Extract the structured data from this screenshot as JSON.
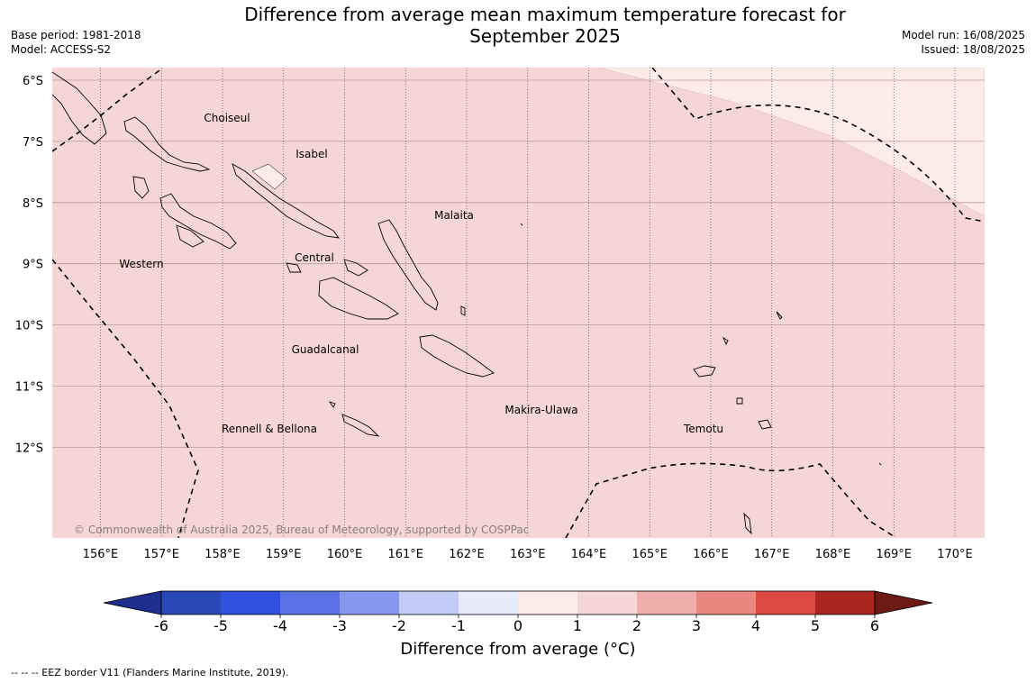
{
  "header": {
    "title_line1": "Difference from average mean maximum temperature forecast for",
    "title_line2": "September 2025",
    "base_period": "Base period: 1981-2018",
    "model": "Model: ACCESS-S2",
    "model_run": "Model run: 16/08/2025",
    "issued": "Issued: 18/08/2025"
  },
  "map": {
    "lat_labels": [
      "6°S",
      "7°S",
      "8°S",
      "9°S",
      "10°S",
      "11°S",
      "12°S"
    ],
    "lon_labels": [
      "156°E",
      "157°E",
      "158°E",
      "159°E",
      "160°E",
      "161°E",
      "162°E",
      "163°E",
      "164°E",
      "165°E",
      "166°E",
      "167°E",
      "168°E",
      "169°E",
      "170°E"
    ],
    "regions": [
      "Choiseul",
      "Isabel",
      "Malaita",
      "Western",
      "Central",
      "Guadalcanal",
      "Rennell & Bellona",
      "Makira-Ulawa",
      "Temotu"
    ],
    "copyright": "© Commonwealth of Australia 2025, Bureau of Meteorology, supported by COSPPac",
    "main_fill": "#f4d6d5",
    "light_fill": "#fdebea"
  },
  "colorbar": {
    "title": "Difference from average (°C)",
    "ticks": [
      "-6",
      "-5",
      "-4",
      "-3",
      "-2",
      "-1",
      "0",
      "1",
      "2",
      "3",
      "4",
      "5",
      "6"
    ],
    "colors": [
      "#1f2f8f",
      "#2a47b6",
      "#3050e0",
      "#5a72e6",
      "#8598ee",
      "#c3caf5",
      "#e8ebfb",
      "#fdebea",
      "#f4d6d5",
      "#eeaeac",
      "#e88880",
      "#dc4a42",
      "#a8261f",
      "#6e1a14"
    ]
  },
  "footnote": "--  --  -- EEZ border V11 (Flanders Marine Institute, 2019)."
}
